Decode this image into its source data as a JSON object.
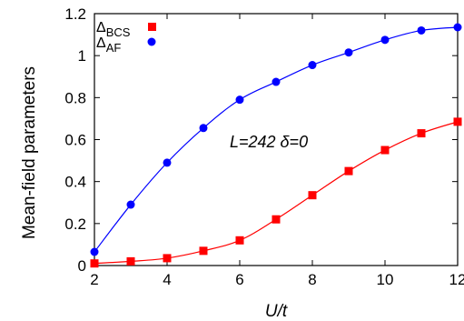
{
  "chart_data": {
    "type": "line",
    "x": [
      2,
      3,
      4,
      5,
      6,
      7,
      8,
      9,
      10,
      11,
      12
    ],
    "series": [
      {
        "name_main": "Δ",
        "name_sub": "BCS",
        "marker": "square",
        "color": "#ff0000",
        "values": [
          0.01,
          0.02,
          0.035,
          0.07,
          0.12,
          0.22,
          0.335,
          0.45,
          0.55,
          0.63,
          0.685
        ]
      },
      {
        "name_main": "Δ",
        "name_sub": "AF",
        "marker": "circle",
        "color": "#0000ff",
        "values": [
          0.065,
          0.29,
          0.49,
          0.655,
          0.79,
          0.875,
          0.955,
          1.015,
          1.075,
          1.12,
          1.135
        ]
      }
    ],
    "xlabel": "U/t",
    "ylabel": "Mean-field parameters",
    "xlim": [
      2,
      12
    ],
    "ylim": [
      0,
      1.2
    ],
    "xticks": [
      2,
      4,
      6,
      8,
      10,
      12
    ],
    "yticks": [
      0,
      0.2,
      0.4,
      0.6,
      0.8,
      1,
      1.2
    ],
    "annotation": "L=242 δ=0",
    "legend_position": "top-left",
    "grid": false
  }
}
